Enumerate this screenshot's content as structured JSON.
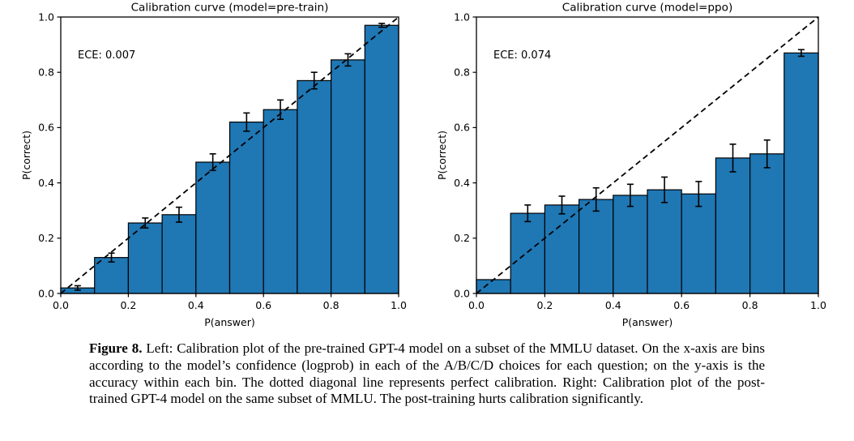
{
  "page": {
    "background": "#ffffff"
  },
  "figure_caption": {
    "label": "Figure 8.",
    "text": "Left: Calibration plot of the pre-trained GPT-4 model on a subset of the MMLU dataset. On the x-axis are bins according to the model’s confidence (logprob) in each of the A/B/C/D choices for each question; on the y-axis is the accuracy within each bin. The dotted diagonal line represents perfect calibration. Right: Calibration plot of the post-trained GPT-4 model on the same subset of MMLU. The post-training hurts calibration significantly."
  },
  "chart_data": [
    {
      "type": "bar",
      "title": "Calibration curve (model=pre-train)",
      "annotation": "ECE: 0.007",
      "ece": 0.007,
      "xlabel": "P(answer)",
      "ylabel": "P(correct)",
      "xlim": [
        0.0,
        1.0
      ],
      "ylim": [
        0.0,
        1.0
      ],
      "x_ticks": [
        "0.0",
        "0.2",
        "0.4",
        "0.6",
        "0.8",
        "1.0"
      ],
      "y_ticks": [
        "0.0",
        "0.2",
        "0.4",
        "0.6",
        "0.8",
        "1.0"
      ],
      "bin_width": 0.1,
      "bin_centers": [
        0.05,
        0.15,
        0.25,
        0.35,
        0.45,
        0.55,
        0.65,
        0.75,
        0.85,
        0.95
      ],
      "values": [
        0.02,
        0.13,
        0.255,
        0.285,
        0.475,
        0.62,
        0.665,
        0.77,
        0.845,
        0.97
      ],
      "errors": [
        0.008,
        0.016,
        0.018,
        0.027,
        0.03,
        0.033,
        0.035,
        0.03,
        0.022,
        0.007
      ],
      "diagonal_line": "y=x dashed (perfect calibration)",
      "bar_color": "#1f77b4",
      "bar_edge_color": "#000000",
      "grid": false,
      "legend": "none"
    },
    {
      "type": "bar",
      "title": "Calibration curve (model=ppo)",
      "annotation": "ECE: 0.074",
      "ece": 0.074,
      "xlabel": "P(answer)",
      "ylabel": "P(correct)",
      "xlim": [
        0.0,
        1.0
      ],
      "ylim": [
        0.0,
        1.0
      ],
      "x_ticks": [
        "0.0",
        "0.2",
        "0.4",
        "0.6",
        "0.8",
        "1.0"
      ],
      "y_ticks": [
        "0.0",
        "0.2",
        "0.4",
        "0.6",
        "0.8",
        "1.0"
      ],
      "bin_width": 0.1,
      "bin_centers": [
        0.05,
        0.15,
        0.25,
        0.35,
        0.45,
        0.55,
        0.65,
        0.75,
        0.85,
        0.95
      ],
      "values": [
        0.05,
        0.29,
        0.32,
        0.34,
        0.355,
        0.375,
        0.36,
        0.49,
        0.505,
        0.87
      ],
      "errors": [
        0,
        0.03,
        0.032,
        0.042,
        0.04,
        0.046,
        0.045,
        0.05,
        0.05,
        0.012
      ],
      "diagonal_line": "y=x dashed (perfect calibration)",
      "bar_color": "#1f77b4",
      "bar_edge_color": "#000000",
      "grid": false,
      "legend": "none"
    }
  ]
}
